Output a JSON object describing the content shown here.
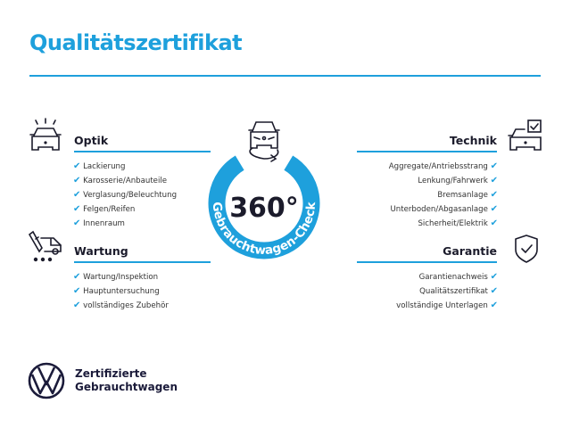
{
  "title": "Qualitätszertifikat",
  "accent_color": "#1ea0dc",
  "center": {
    "degrees": "360°",
    "ring_text": "Gebrauchtwagen-Check",
    "icon": "car-rotate-icon"
  },
  "sections": {
    "optik": {
      "heading": "Optik",
      "icon": "car-lights-icon",
      "items": [
        "Lackierung",
        "Karosserie/Anbauteile",
        "Verglasung/Beleuchtung",
        "Felgen/Reifen",
        "Innenraum"
      ]
    },
    "wartung": {
      "heading": "Wartung",
      "icon": "service-truck-icon",
      "items": [
        "Wartung/Inspektion",
        "Hauptuntersuchung",
        "vollständiges Zubehör"
      ]
    },
    "technik": {
      "heading": "Technik",
      "icon": "car-checkbox-icon",
      "items": [
        "Aggregate/Antriebsstrang",
        "Lenkung/Fahrwerk",
        "Bremsanlage",
        "Unterboden/Abgasanlage",
        "Sicherheit/Elektrik"
      ]
    },
    "garantie": {
      "heading": "Garantie",
      "icon": "shield-check-icon",
      "items": [
        "Garantienachweis",
        "Qualitätszertifikat",
        "vollständige Unterlagen"
      ]
    }
  },
  "check_mark": "✔",
  "footer": {
    "line1": "Zertifizierte",
    "line2": "Gebrauchtwagen",
    "logo": "vw-logo"
  }
}
